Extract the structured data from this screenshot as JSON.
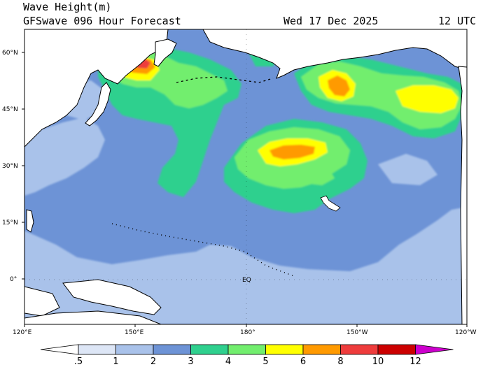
{
  "header": {
    "title": "Wave Height(m)",
    "subtitle": "GFSwave 096 Hour Forecast",
    "date": "Wed 17 Dec 2025",
    "time": "12 UTC"
  },
  "map": {
    "lat_labels": [
      "60°N",
      "45°N",
      "30°N",
      "15°N",
      "0°"
    ],
    "lon_labels": [
      "120°E",
      "150°E",
      "180°",
      "150°W",
      "120°W"
    ],
    "place_labels": [
      "EQ"
    ],
    "colors": {
      "ocean_base": "#6d93d6",
      "land": "#ffffff",
      "coast": "#000000"
    }
  },
  "colorbar": {
    "labels": [
      ".5",
      "1",
      "2",
      "3",
      "4",
      "5",
      "6",
      "8",
      "10",
      "12"
    ],
    "colors": [
      "#ffffff",
      "#dde6f6",
      "#a9c2ea",
      "#6d93d6",
      "#2fd08e",
      "#72ee6e",
      "#ffff00",
      "#ff9a00",
      "#ee3c3c",
      "#cc0000",
      "#cc00cc"
    ]
  }
}
